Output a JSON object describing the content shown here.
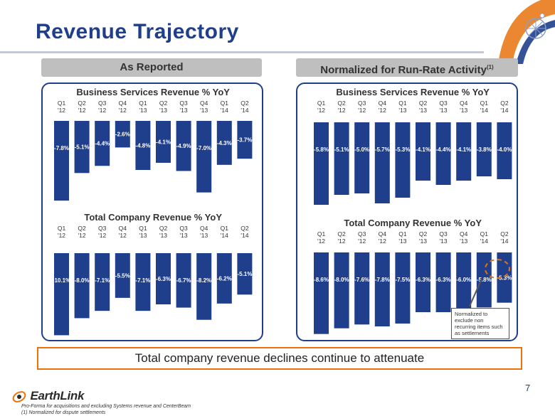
{
  "slide": {
    "title": "Revenue Trajectory",
    "page_number": "7"
  },
  "sections": {
    "reported": {
      "label": "As Reported"
    },
    "normalized": {
      "label": "Normalized for Run-Rate Activity",
      "sup": "(1)"
    }
  },
  "callout": {
    "text": "Normalized to exclude non recurring items such as settlements"
  },
  "summary": "Total company revenue declines continue to attenuate",
  "logo": {
    "text": "EarthLink"
  },
  "footnotes": [
    "Pro-Forma for acquisitions and excluding Systems revenue and CenterBeam",
    "(1) Normalized for dispute settlements"
  ],
  "colors": {
    "title": "#1f3e8c",
    "bar": "#1f3e8c",
    "panel_border": "#1f3e8c",
    "summary_border": "#e8720c",
    "highlight": "#e8720c",
    "header_bg": "#bfbfbf"
  },
  "chart_data": [
    {
      "id": "reported-business",
      "type": "bar",
      "title": "Business Services Revenue % YoY",
      "categories": [
        "Q1 '12",
        "Q2 '12",
        "Q3 '12",
        "Q4 '12",
        "Q1 '13",
        "Q2 '13",
        "Q3 '13",
        "Q4 '13",
        "Q1 '14",
        "Q2 '14"
      ],
      "category_lines": [
        [
          "Q1",
          "'12"
        ],
        [
          "Q2",
          "'12"
        ],
        [
          "Q3",
          "'12"
        ],
        [
          "Q4",
          "'12"
        ],
        [
          "Q1",
          "'13"
        ],
        [
          "Q2",
          "'13"
        ],
        [
          "Q3",
          "'13"
        ],
        [
          "Q4",
          "'13"
        ],
        [
          "Q1",
          "'14"
        ],
        [
          "Q2",
          "'14"
        ]
      ],
      "values": [
        -7.8,
        -5.1,
        -4.4,
        -2.6,
        -4.8,
        -4.1,
        -4.9,
        -7.0,
        -4.3,
        -3.7
      ],
      "labels": [
        "-7.8%",
        "-5.1%",
        "-4.4%",
        "-2.6%",
        "-4.8%",
        "-4.1%",
        "-4.9%",
        "-7.0%",
        "-4.3%",
        "-3.7%"
      ],
      "ylim": [
        -8,
        0
      ]
    },
    {
      "id": "reported-total",
      "type": "bar",
      "title": "Total Company Revenue % YoY",
      "categories": [
        "Q1 '12",
        "Q2 '12",
        "Q3 '12",
        "Q4 '12",
        "Q1 '13",
        "Q2 '13",
        "Q3 '13",
        "Q4 '13",
        "Q1 '14",
        "Q2 '14"
      ],
      "category_lines": [
        [
          "Q1",
          "'12"
        ],
        [
          "Q2",
          "'12"
        ],
        [
          "Q3",
          "'12"
        ],
        [
          "Q4",
          "'12"
        ],
        [
          "Q1",
          "'13"
        ],
        [
          "Q2",
          "'13"
        ],
        [
          "Q3",
          "'13"
        ],
        [
          "Q4",
          "'13"
        ],
        [
          "Q1",
          "'14"
        ],
        [
          "Q2",
          "'14"
        ]
      ],
      "values": [
        -10.1,
        -8.0,
        -7.1,
        -5.5,
        -7.1,
        -6.3,
        -6.7,
        -8.2,
        -6.2,
        -5.1
      ],
      "labels": [
        "-10.1%",
        "-8.0%",
        "-7.1%",
        "-5.5%",
        "-7.1%",
        "-6.3%",
        "-6.7%",
        "-8.2%",
        "-6.2%",
        "-5.1%"
      ],
      "ylim": [
        -10.5,
        0
      ]
    },
    {
      "id": "normalized-business",
      "type": "bar",
      "title": "Business Services Revenue % YoY",
      "categories": [
        "Q1 '12",
        "Q2 '12",
        "Q3 '12",
        "Q4 '12",
        "Q1 '13",
        "Q2 '13",
        "Q3 '13",
        "Q4 '13",
        "Q1 '14",
        "Q2 '14"
      ],
      "category_lines": [
        [
          "Q1",
          "'12"
        ],
        [
          "Q2",
          "'12"
        ],
        [
          "Q3",
          "'12"
        ],
        [
          "Q4",
          "'12"
        ],
        [
          "Q1",
          "'13"
        ],
        [
          "Q2",
          "'13"
        ],
        [
          "Q3",
          "'13"
        ],
        [
          "Q4",
          "'13"
        ],
        [
          "Q1",
          "'14"
        ],
        [
          "Q2",
          "'14"
        ]
      ],
      "values": [
        -5.8,
        -5.1,
        -5.0,
        -5.7,
        -5.3,
        -4.1,
        -4.4,
        -4.1,
        -3.8,
        -4.0
      ],
      "labels": [
        "-5.8%",
        "-5.1%",
        "-5.0%",
        "-5.7%",
        "-5.3%",
        "-4.1%",
        "-4.4%",
        "-4.1%",
        "-3.8%",
        "-4.0%"
      ],
      "ylim": [
        -6.3,
        0
      ]
    },
    {
      "id": "normalized-total",
      "type": "bar",
      "title": "Total Company Revenue % YoY",
      "categories": [
        "Q1 '12",
        "Q2 '12",
        "Q3 '12",
        "Q4 '12",
        "Q1 '13",
        "Q2 '13",
        "Q3 '13",
        "Q4 '13",
        "Q1 '14",
        "Q2 '14"
      ],
      "category_lines": [
        [
          "Q1",
          "'12"
        ],
        [
          "Q2",
          "'12"
        ],
        [
          "Q3",
          "'12"
        ],
        [
          "Q4",
          "'12"
        ],
        [
          "Q1",
          "'13"
        ],
        [
          "Q2",
          "'13"
        ],
        [
          "Q3",
          "'13"
        ],
        [
          "Q4",
          "'13"
        ],
        [
          "Q1",
          "'14"
        ],
        [
          "Q2",
          "'14"
        ]
      ],
      "values": [
        -8.6,
        -8.0,
        -7.6,
        -7.8,
        -7.5,
        -6.3,
        -6.3,
        -6.0,
        -5.8,
        -5.3
      ],
      "labels": [
        "-8.6%",
        "-8.0%",
        "-7.6%",
        "-7.8%",
        "-7.5%",
        "-6.3%",
        "-6.3%",
        "-6.0%",
        "-5.8%",
        "-5.3%"
      ],
      "ylim": [
        -9.0,
        0
      ]
    }
  ]
}
